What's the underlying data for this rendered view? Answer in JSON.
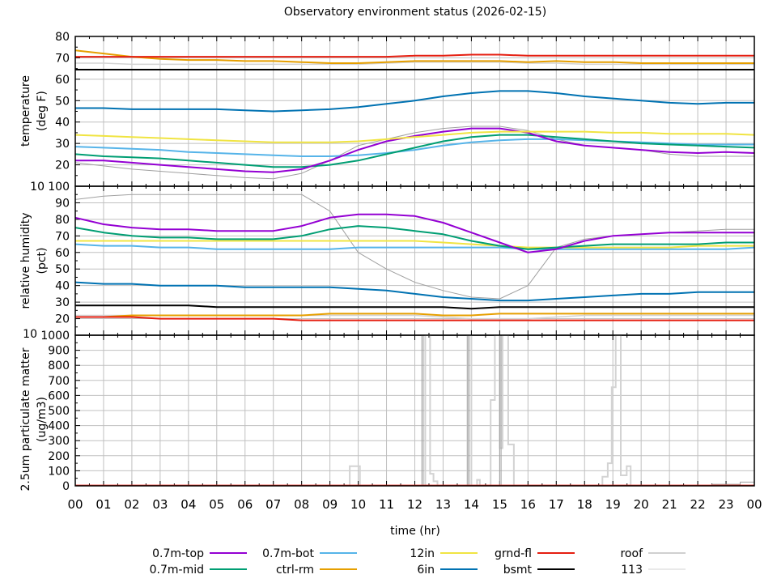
{
  "chart_data": {
    "type": "line",
    "title": "Observatory environment status (2026-02-15)",
    "xlabel": "time (hr)",
    "x_tick_labels": [
      "00",
      "01",
      "02",
      "03",
      "04",
      "05",
      "06",
      "07",
      "08",
      "09",
      "10",
      "11",
      "12",
      "13",
      "14",
      "15",
      "16",
      "17",
      "18",
      "19",
      "20",
      "21",
      "22",
      "23",
      "00"
    ],
    "xlim": [
      0,
      24
    ],
    "grid": true,
    "legend_placement": "bottom",
    "legend": [
      {
        "name": "0.7m-top",
        "color": "#9400d3"
      },
      {
        "name": "0.7m-mid",
        "color": "#009e73"
      },
      {
        "name": "0.7m-bot",
        "color": "#56b4e9"
      },
      {
        "name": "ctrl-rm",
        "color": "#e69f00"
      },
      {
        "name": "12in",
        "color": "#f0e442"
      },
      {
        "name": "6in",
        "color": "#0072b2"
      },
      {
        "name": "grnd-fl",
        "color": "#e51e10"
      },
      {
        "name": "bsmt",
        "color": "#000000"
      },
      {
        "name": "roof",
        "color": "#a0a0a0"
      },
      {
        "name": "113",
        "color": "#d3d3d3"
      }
    ],
    "panels": [
      {
        "ylabel": [
          "temperature",
          "(deg F)"
        ],
        "ylim": [
          10,
          80
        ],
        "ystep": 10,
        "y_tick_labels": [
          "10",
          "20",
          "30",
          "40",
          "50",
          "60",
          "70",
          "80"
        ],
        "series": [
          {
            "name": "113",
            "values": [
              67.5,
              67.5,
              67,
              67,
              67,
              67,
              67,
              67,
              67,
              67,
              67,
              67.5,
              68,
              68,
              68,
              68,
              67.5,
              67.5,
              67,
              67,
              67,
              67,
              67,
              67,
              67
            ]
          },
          {
            "name": "roof",
            "values": [
              21,
              19.5,
              18,
              17,
              16,
              15,
              14,
              13.5,
              16,
              22,
              29,
              32,
              35,
              37,
              38,
              38,
              36,
              32,
              29,
              28,
              27,
              25,
              24,
              24,
              24
            ]
          },
          {
            "name": "0.7m-bot",
            "values": [
              28.5,
              28,
              27.5,
              27,
              26,
              25.5,
              25,
              24.5,
              24,
              24,
              24.5,
              25.5,
              27,
              29,
              30.5,
              31.5,
              32,
              32,
              31.5,
              31,
              30.5,
              30,
              29.5,
              29.5,
              29.5
            ]
          },
          {
            "name": "0.7m-mid",
            "values": [
              25,
              24,
              23.5,
              23,
              22,
              21,
              20,
              19,
              19,
              20,
              22,
              25,
              28,
              31,
              33,
              34,
              34,
              33,
              32,
              31,
              30,
              29.5,
              29,
              28.5,
              28
            ]
          },
          {
            "name": "0.7m-top",
            "values": [
              22,
              22,
              21,
              20,
              19,
              18,
              17,
              16.5,
              18,
              22,
              27,
              31,
              33.5,
              35.5,
              37,
              37,
              35,
              31,
              29,
              28,
              27,
              26,
              25.5,
              26,
              25.5
            ]
          },
          {
            "name": "12in",
            "values": [
              34,
              33.5,
              33,
              32.5,
              32,
              31.5,
              31,
              30.5,
              30.5,
              30.5,
              31,
              32,
              33,
              34,
              35,
              35.5,
              35.5,
              35.5,
              35.5,
              35,
              35,
              34.5,
              34.5,
              34.5,
              34
            ]
          },
          {
            "name": "6in",
            "values": [
              46.5,
              46.5,
              46,
              46,
              46,
              46,
              45.5,
              45,
              45.5,
              46,
              47,
              48.5,
              50,
              52,
              53.5,
              54.5,
              54.5,
              53.5,
              52,
              51,
              50,
              49,
              48.5,
              49,
              49
            ]
          },
          {
            "name": "bsmt",
            "values": [
              64.5,
              64.5,
              64.5,
              64.5,
              64.5,
              64.5,
              64.5,
              64.5,
              64.5,
              64.5,
              64.5,
              64.5,
              64.5,
              64.5,
              64.5,
              64.5,
              64.5,
              64.5,
              64.5,
              64.5,
              64.5,
              64.5,
              64.5,
              64.5,
              64.5
            ]
          },
          {
            "name": "ctrl-rm",
            "values": [
              73.5,
              72,
              70.5,
              69.5,
              69,
              69,
              68.5,
              68.5,
              68,
              67.5,
              67.5,
              68,
              68.5,
              68.5,
              68.5,
              68.5,
              68,
              68.5,
              68,
              68,
              67.5,
              67.5,
              67.5,
              67.5,
              67.5
            ]
          },
          {
            "name": "grnd-fl",
            "values": [
              70.5,
              70.5,
              70.5,
              70.5,
              70.5,
              70.5,
              70.5,
              70.5,
              70.5,
              70.5,
              70.5,
              70.5,
              71,
              71,
              71.5,
              71.5,
              71,
              71,
              71,
              71,
              71,
              71,
              71,
              71,
              71
            ]
          }
        ]
      },
      {
        "ylabel": [
          "relative humidity",
          "(pct)"
        ],
        "ylim": [
          10,
          100
        ],
        "ystep": 10,
        "y_tick_labels": [
          "10",
          "20",
          "30",
          "40",
          "50",
          "60",
          "70",
          "80",
          "90",
          "100"
        ],
        "series": [
          {
            "name": "113",
            "values": [
              22,
              22,
              22,
              22,
              22,
              22,
              22,
              22,
              22,
              22,
              22,
              22,
              22,
              21,
              20,
              20,
              20,
              21,
              22,
              22,
              22,
              22,
              22,
              22,
              22
            ]
          },
          {
            "name": "roof",
            "values": [
              92,
              94,
              95,
              95,
              95,
              95,
              95,
              95,
              95,
              85,
              60,
              50,
              42,
              37,
              33,
              32,
              40,
              63,
              68,
              70,
              71,
              72,
              73,
              74,
              74
            ]
          },
          {
            "name": "0.7m-bot",
            "values": [
              65,
              64,
              64,
              63,
              63,
              62,
              62,
              62,
              62,
              62,
              63,
              63,
              63,
              63,
              63,
              63,
              62,
              62,
              62,
              62,
              62,
              62,
              62,
              62,
              63
            ]
          },
          {
            "name": "12in",
            "values": [
              67,
              67,
              67,
              67,
              67,
              67,
              67,
              67,
              67,
              67,
              67,
              67,
              67,
              66,
              65,
              64,
              63,
              63,
              63,
              63,
              63,
              63,
              64,
              64,
              64
            ]
          },
          {
            "name": "0.7m-mid",
            "values": [
              75,
              72,
              70,
              69,
              69,
              68,
              68,
              68,
              70,
              74,
              76,
              75,
              73,
              71,
              67,
              64,
              62,
              63,
              64,
              65,
              65,
              65,
              65,
              66,
              66
            ]
          },
          {
            "name": "0.7m-top",
            "values": [
              81,
              77,
              75,
              74,
              74,
              73,
              73,
              73,
              76,
              81,
              83,
              83,
              82,
              78,
              72,
              66,
              60,
              62,
              67,
              70,
              71,
              72,
              72,
              72,
              72
            ]
          },
          {
            "name": "6in",
            "values": [
              42,
              41,
              41,
              40,
              40,
              40,
              39,
              39,
              39,
              39,
              38,
              37,
              35,
              33,
              32,
              31,
              31,
              32,
              33,
              34,
              35,
              35,
              36,
              36,
              36
            ]
          },
          {
            "name": "bsmt",
            "values": [
              28,
              28,
              28,
              28,
              28,
              27,
              27,
              27,
              27,
              27,
              27,
              27,
              27,
              27,
              26,
              27,
              27,
              27,
              27,
              27,
              27,
              27,
              27,
              27,
              27
            ]
          },
          {
            "name": "ctrl-rm",
            "values": [
              21,
              21,
              22,
              22,
              22,
              22,
              22,
              22,
              22,
              23,
              23,
              23,
              23,
              22,
              22,
              23,
              23,
              23,
              23,
              23,
              23,
              23,
              23,
              23,
              23
            ]
          },
          {
            "name": "grnd-fl",
            "values": [
              21,
              21,
              21,
              20,
              20,
              20,
              20,
              20,
              19,
              19,
              19,
              19,
              19,
              19,
              19,
              19,
              19,
              19,
              19,
              19,
              19,
              19,
              19,
              19,
              19
            ]
          }
        ]
      },
      {
        "ylabel": [
          "2.5um particulate matter",
          "(ug/m3)"
        ],
        "ylim": [
          0,
          1000
        ],
        "ystep": 100,
        "y_tick_labels": [
          "0",
          "100",
          "200",
          "300",
          "400",
          "500",
          "600",
          "700",
          "800",
          "900",
          "1000"
        ],
        "step_series": [
          {
            "name": "113",
            "points": [
              [
                0,
                0
              ],
              [
                9.7,
                130
              ],
              [
                10.06,
                0
              ],
              [
                12.37,
                1000
              ],
              [
                12.54,
                80
              ],
              [
                12.66,
                30
              ],
              [
                12.8,
                0
              ],
              [
                13.86,
                1000
              ],
              [
                14.0,
                0
              ],
              [
                14.2,
                40
              ],
              [
                14.3,
                0
              ],
              [
                14.68,
                570
              ],
              [
                14.83,
                1000
              ],
              [
                15.0,
                250
              ],
              [
                15.1,
                1000
              ],
              [
                15.3,
                275
              ],
              [
                15.5,
                0
              ],
              [
                18.63,
                60
              ],
              [
                18.82,
                150
              ],
              [
                18.96,
                655
              ],
              [
                19.1,
                1000
              ],
              [
                19.28,
                70
              ],
              [
                19.49,
                130
              ],
              [
                19.63,
                0
              ],
              [
                24,
                0
              ]
            ]
          },
          {
            "name": "roof",
            "points": [
              [
                0,
                0
              ],
              [
                12.25,
                1000
              ],
              [
                12.3,
                0
              ],
              [
                13.87,
                1000
              ],
              [
                13.92,
                0
              ],
              [
                15.0,
                1000
              ],
              [
                15.05,
                0
              ],
              [
                22.5,
                10
              ],
              [
                23.5,
                25
              ],
              [
                24,
                30
              ]
            ]
          },
          {
            "name": "grnd-fl",
            "points": [
              [
                0,
                5
              ],
              [
                24,
                5
              ]
            ]
          }
        ]
      }
    ]
  }
}
